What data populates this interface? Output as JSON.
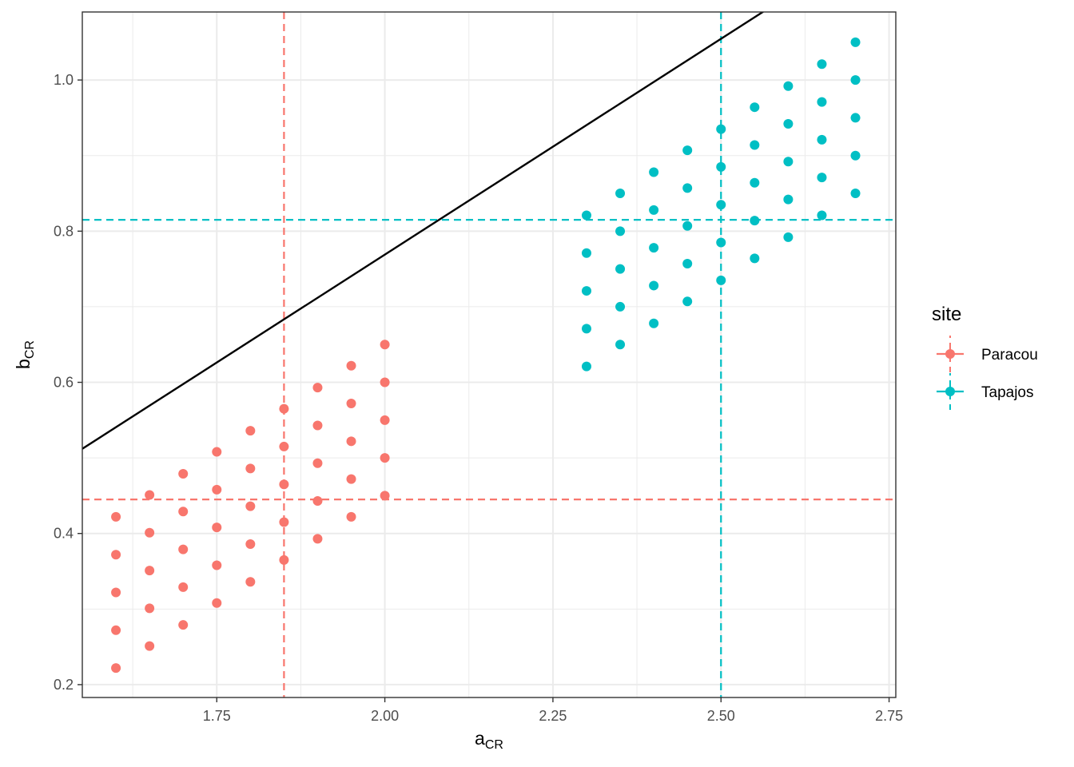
{
  "chart_data": {
    "type": "scatter",
    "xlabel": {
      "main": "a",
      "sub": "CR"
    },
    "ylabel": {
      "main": "b",
      "sub": "CR"
    },
    "xlim": [
      1.55,
      2.76
    ],
    "ylim": [
      0.183,
      1.09
    ],
    "x_ticks": [
      1.75,
      2.0,
      2.25,
      2.5,
      2.75
    ],
    "x_tick_labels": [
      "1.75",
      "2.00",
      "2.25",
      "2.50",
      "2.75"
    ],
    "y_ticks": [
      0.2,
      0.4,
      0.6,
      0.8,
      1.0
    ],
    "y_tick_labels": [
      "0.2",
      "0.4",
      "0.6",
      "0.8",
      "1.0"
    ],
    "grid": true,
    "legend": {
      "title": "site",
      "placement": "right"
    },
    "series": [
      {
        "name": "Paracou",
        "color": "#F8766D",
        "points": [
          [
            1.6,
            0.222
          ],
          [
            1.6,
            0.272
          ],
          [
            1.6,
            0.322
          ],
          [
            1.6,
            0.372
          ],
          [
            1.6,
            0.422
          ],
          [
            1.65,
            0.251
          ],
          [
            1.65,
            0.301
          ],
          [
            1.65,
            0.351
          ],
          [
            1.65,
            0.401
          ],
          [
            1.65,
            0.451
          ],
          [
            1.7,
            0.279
          ],
          [
            1.7,
            0.329
          ],
          [
            1.7,
            0.379
          ],
          [
            1.7,
            0.429
          ],
          [
            1.7,
            0.479
          ],
          [
            1.75,
            0.308
          ],
          [
            1.75,
            0.358
          ],
          [
            1.75,
            0.408
          ],
          [
            1.75,
            0.458
          ],
          [
            1.75,
            0.508
          ],
          [
            1.8,
            0.336
          ],
          [
            1.8,
            0.386
          ],
          [
            1.8,
            0.436
          ],
          [
            1.8,
            0.486
          ],
          [
            1.8,
            0.536
          ],
          [
            1.85,
            0.365
          ],
          [
            1.85,
            0.415
          ],
          [
            1.85,
            0.465
          ],
          [
            1.85,
            0.515
          ],
          [
            1.85,
            0.565
          ],
          [
            1.9,
            0.393
          ],
          [
            1.9,
            0.443
          ],
          [
            1.9,
            0.493
          ],
          [
            1.9,
            0.543
          ],
          [
            1.9,
            0.593
          ],
          [
            1.95,
            0.422
          ],
          [
            1.95,
            0.472
          ],
          [
            1.95,
            0.522
          ],
          [
            1.95,
            0.572
          ],
          [
            1.95,
            0.622
          ],
          [
            2.0,
            0.45
          ],
          [
            2.0,
            0.5
          ],
          [
            2.0,
            0.55
          ],
          [
            2.0,
            0.6
          ],
          [
            2.0,
            0.65
          ]
        ],
        "ref_x": 1.85,
        "ref_y": 0.445
      },
      {
        "name": "Tapajos",
        "color": "#00BFC4",
        "points": [
          [
            2.3,
            0.621
          ],
          [
            2.3,
            0.671
          ],
          [
            2.3,
            0.721
          ],
          [
            2.3,
            0.771
          ],
          [
            2.3,
            0.821
          ],
          [
            2.35,
            0.65
          ],
          [
            2.35,
            0.7
          ],
          [
            2.35,
            0.75
          ],
          [
            2.35,
            0.8
          ],
          [
            2.35,
            0.85
          ],
          [
            2.4,
            0.678
          ],
          [
            2.4,
            0.728
          ],
          [
            2.4,
            0.778
          ],
          [
            2.4,
            0.828
          ],
          [
            2.4,
            0.878
          ],
          [
            2.45,
            0.707
          ],
          [
            2.45,
            0.757
          ],
          [
            2.45,
            0.807
          ],
          [
            2.45,
            0.857
          ],
          [
            2.45,
            0.907
          ],
          [
            2.5,
            0.735
          ],
          [
            2.5,
            0.785
          ],
          [
            2.5,
            0.835
          ],
          [
            2.5,
            0.885
          ],
          [
            2.5,
            0.935
          ],
          [
            2.55,
            0.764
          ],
          [
            2.55,
            0.814
          ],
          [
            2.55,
            0.864
          ],
          [
            2.55,
            0.914
          ],
          [
            2.55,
            0.964
          ],
          [
            2.6,
            0.792
          ],
          [
            2.6,
            0.842
          ],
          [
            2.6,
            0.892
          ],
          [
            2.6,
            0.942
          ],
          [
            2.6,
            0.992
          ],
          [
            2.65,
            0.821
          ],
          [
            2.65,
            0.871
          ],
          [
            2.65,
            0.921
          ],
          [
            2.65,
            0.971
          ],
          [
            2.65,
            1.021
          ],
          [
            2.7,
            0.85
          ],
          [
            2.7,
            0.9
          ],
          [
            2.7,
            0.95
          ],
          [
            2.7,
            1.0
          ],
          [
            2.7,
            1.05
          ]
        ],
        "ref_x": 2.5,
        "ref_y": 0.815
      }
    ],
    "reference_line": {
      "color": "#000000",
      "slope": 0.571,
      "intercept": -0.373
    }
  }
}
